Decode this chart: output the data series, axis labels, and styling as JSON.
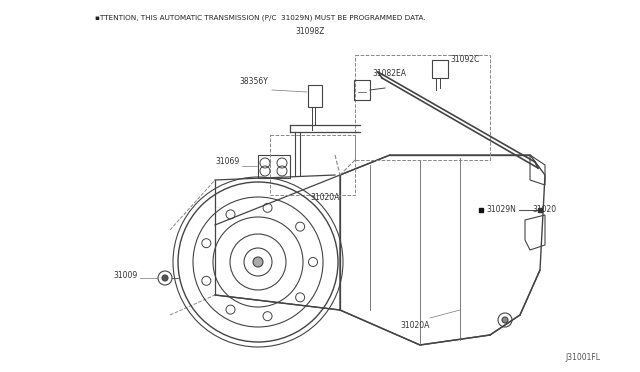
{
  "bg_color": "#ffffff",
  "line_color": "#444444",
  "title_line1": "▪TTENTION, THIS AUTOMATIC TRANSMISSION (P/C  31029N) MUST BE PROGRAMMED DATA.",
  "title_line2": "31098Z",
  "watermark": "J31001FL",
  "figsize": [
    6.4,
    3.72
  ],
  "dpi": 100
}
